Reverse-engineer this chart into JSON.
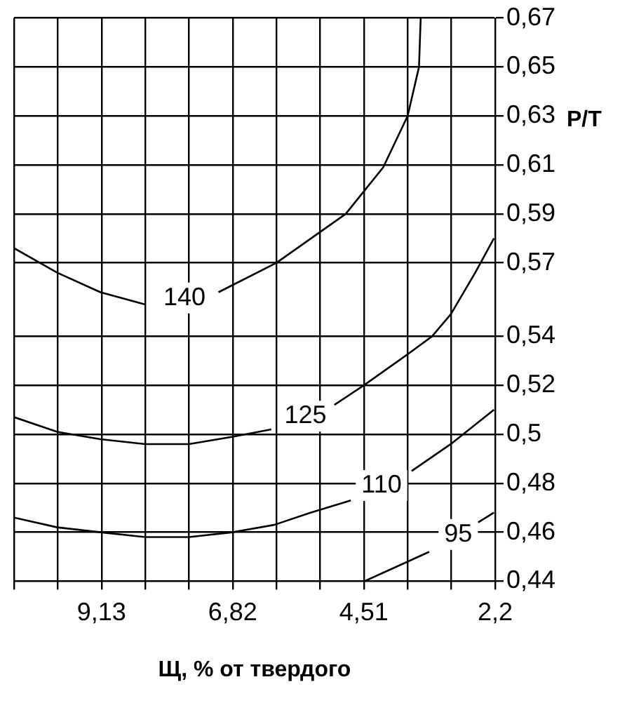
{
  "chart_data": {
    "type": "line",
    "xlabel": "Щ, % от твердого",
    "ylabel": "P/T",
    "xlim": [
      10.67,
      2.2
    ],
    "xticks": [
      {
        "value": 10.67,
        "label": null
      },
      {
        "value": 9.9,
        "label": null
      },
      {
        "value": 9.13,
        "label": "9,13"
      },
      {
        "value": 8.36,
        "label": null
      },
      {
        "value": 7.59,
        "label": null
      },
      {
        "value": 6.82,
        "label": "6,82"
      },
      {
        "value": 6.05,
        "label": null
      },
      {
        "value": 5.28,
        "label": null
      },
      {
        "value": 4.51,
        "label": "4,51"
      },
      {
        "value": 3.74,
        "label": null
      },
      {
        "value": 2.97,
        "label": null
      },
      {
        "value": 2.2,
        "label": "2,2"
      }
    ],
    "ylim": [
      0.44,
      0.67
    ],
    "yticks": [
      {
        "value": 0.44,
        "label": "0,44"
      },
      {
        "value": 0.46,
        "label": "0,46"
      },
      {
        "value": 0.48,
        "label": "0,48"
      },
      {
        "value": 0.5,
        "label": "0,5"
      },
      {
        "value": 0.52,
        "label": "0,52"
      },
      {
        "value": 0.54,
        "label": "0,54"
      },
      {
        "value": 0.57,
        "label": "0,57"
      },
      {
        "value": 0.59,
        "label": "0,59"
      },
      {
        "value": 0.61,
        "label": "0,61"
      },
      {
        "value": 0.63,
        "label": "0,63"
      },
      {
        "value": 0.65,
        "label": "0,65"
      },
      {
        "value": 0.67,
        "label": "0,67"
      }
    ],
    "grid": true,
    "legend": false,
    "marker": "none",
    "line_style": "solid",
    "series": [
      {
        "name": "140",
        "color": "#000000",
        "x": [
          10.67,
          9.91,
          9.15,
          8.36,
          7.67,
          7.07,
          6.05,
          4.83,
          4.17,
          3.74,
          3.54,
          3.51
        ],
        "values": [
          0.576,
          0.566,
          0.558,
          0.553,
          null,
          0.558,
          0.57,
          0.59,
          0.609,
          0.63,
          0.65,
          0.67
        ]
      },
      {
        "name": "125",
        "color": "#000000",
        "x": [
          10.67,
          9.91,
          9.15,
          8.36,
          7.59,
          6.82,
          6.14,
          5.54,
          5.03,
          4.51,
          3.72,
          3.31,
          2.98,
          2.55,
          2.22
        ],
        "values": [
          0.507,
          0.501,
          0.498,
          0.496,
          0.496,
          0.499,
          0.502,
          null,
          0.512,
          0.52,
          0.533,
          0.54,
          0.549,
          0.566,
          0.58
        ]
      },
      {
        "name": "110",
        "color": "#000000",
        "x": [
          10.67,
          9.91,
          9.15,
          8.36,
          7.59,
          6.82,
          6.09,
          5.45,
          4.74,
          4.2,
          3.67,
          2.98,
          2.22
        ],
        "values": [
          0.466,
          0.462,
          0.46,
          0.458,
          0.458,
          0.46,
          0.463,
          0.468,
          0.473,
          null,
          0.485,
          0.496,
          0.51
        ]
      },
      {
        "name": "95",
        "color": "#000000",
        "x": [
          4.5,
          3.74,
          3.36,
          2.85,
          2.5,
          2.22
        ],
        "values": [
          0.44,
          0.448,
          0.452,
          null,
          0.464,
          0.468
        ]
      }
    ]
  }
}
